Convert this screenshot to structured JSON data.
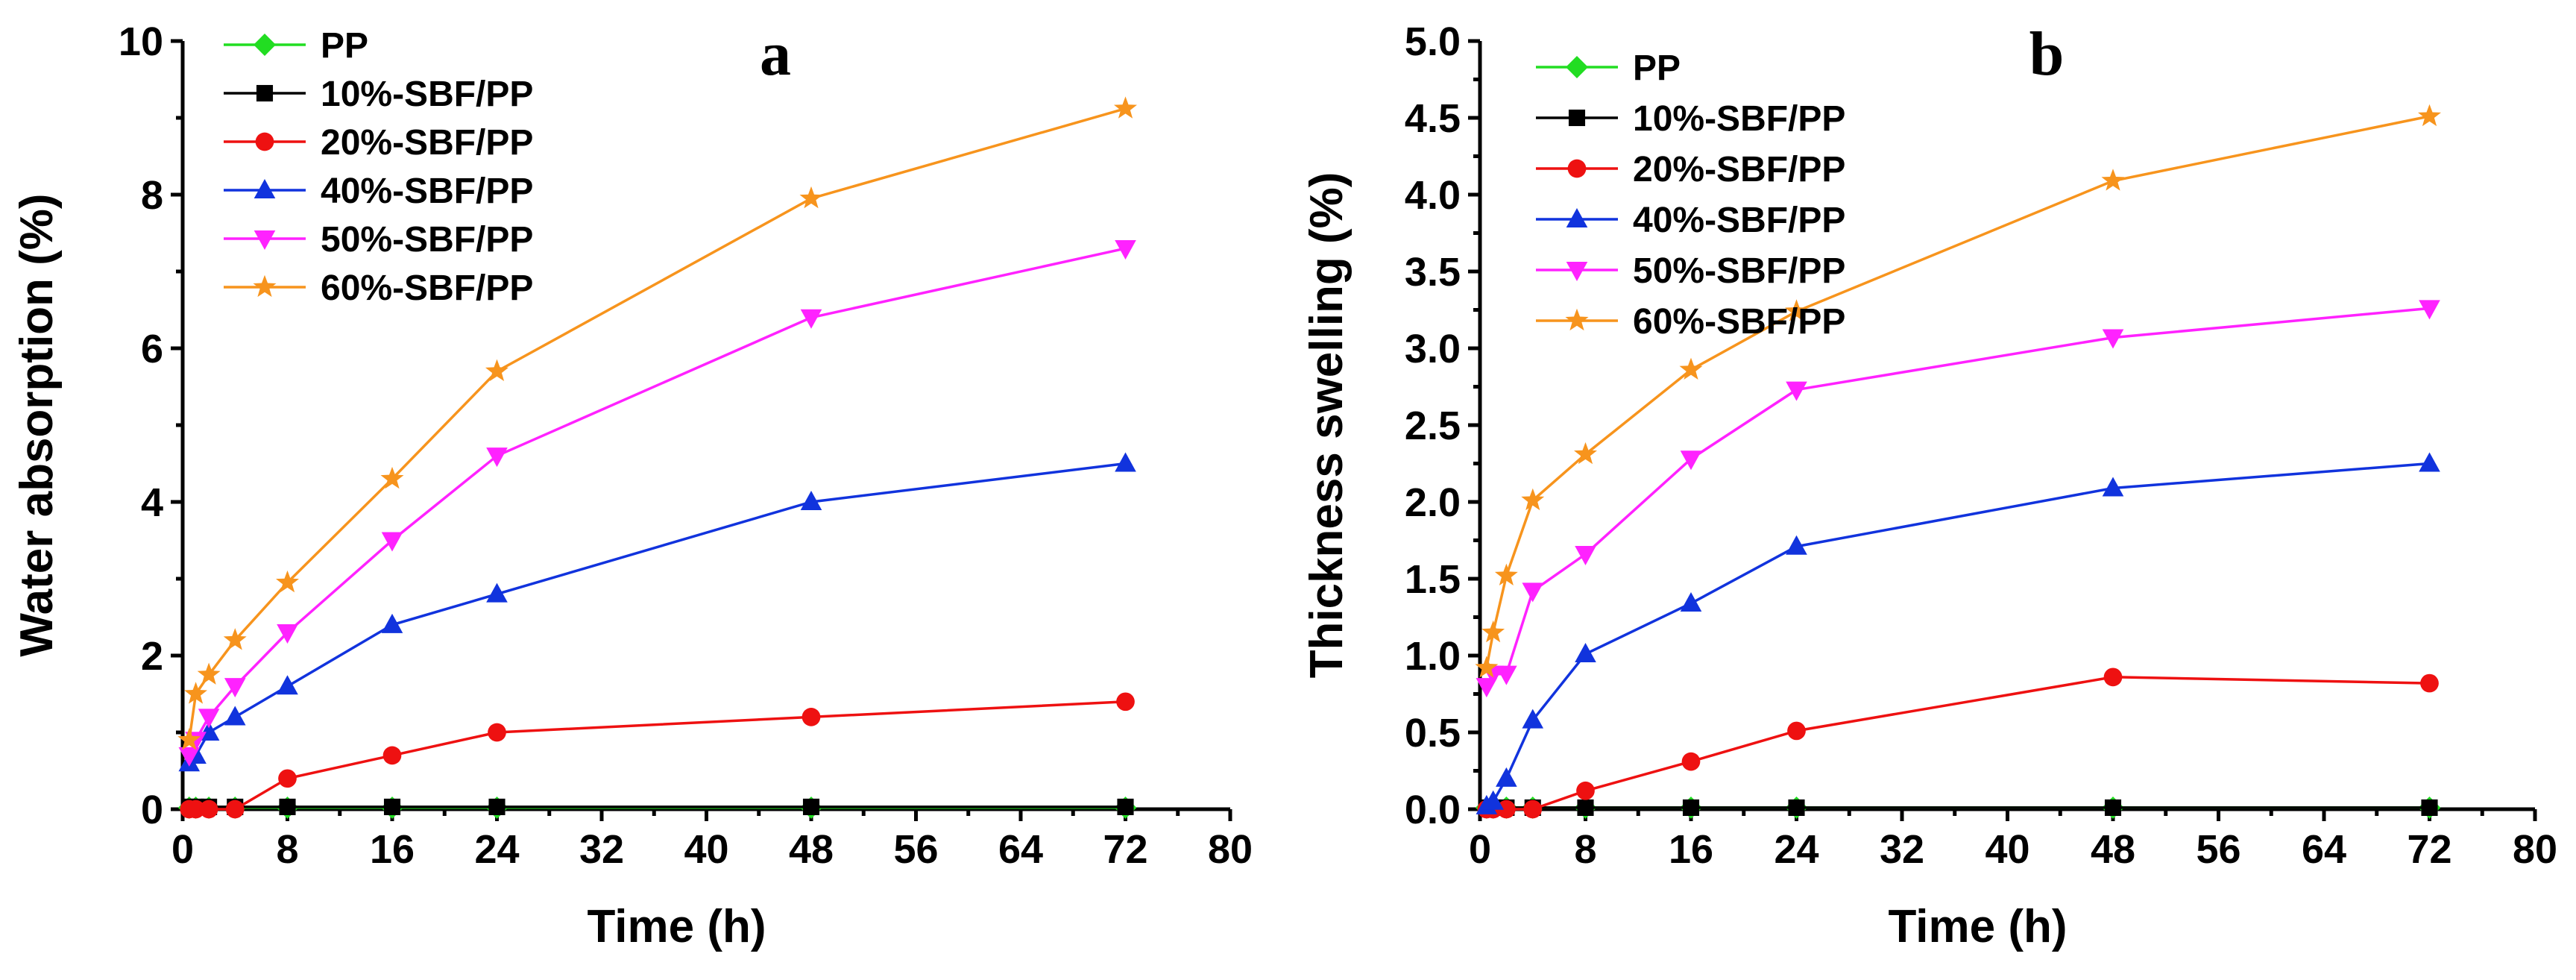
{
  "colors": {
    "PP": "#22dd22",
    "10%-SBF/PP": "#000000",
    "20%-SBF/PP": "#ee1111",
    "40%-SBF/PP": "#1133dd",
    "50%-SBF/PP": "#ff22ff",
    "60%-SBF/PP": "#f7941d"
  },
  "markers": {
    "PP": "diamond",
    "10%-SBF/PP": "square",
    "20%-SBF/PP": "circle",
    "40%-SBF/PP": "triangle-up",
    "50%-SBF/PP": "triangle-down",
    "60%-SBF/PP": "star"
  },
  "chart_data": [
    {
      "type": "line",
      "panel_label": "a",
      "xlabel": "Time (h)",
      "ylabel": "Water absorption (%)",
      "xlim": [
        0,
        80
      ],
      "ylim": [
        0,
        10
      ],
      "xticks": [
        0,
        8,
        16,
        24,
        32,
        40,
        48,
        56,
        64,
        72,
        80
      ],
      "yticks": [
        0,
        2,
        4,
        6,
        8,
        10
      ],
      "legend": "top-left",
      "x": [
        0.5,
        1,
        2,
        4,
        8,
        16,
        24,
        48,
        72
      ],
      "series": [
        {
          "name": "PP",
          "values": [
            0.02,
            0.02,
            0.02,
            0.02,
            0.02,
            0.02,
            0.02,
            0.02,
            0.02
          ]
        },
        {
          "name": "10%-SBF/PP",
          "values": [
            0.03,
            0.03,
            0.03,
            0.03,
            0.03,
            0.03,
            0.03,
            0.03,
            0.03
          ]
        },
        {
          "name": "20%-SBF/PP",
          "values": [
            0.0,
            0.0,
            0.0,
            0.0,
            0.4,
            0.7,
            1.0,
            1.2,
            1.4
          ]
        },
        {
          "name": "40%-SBF/PP",
          "values": [
            0.6,
            0.7,
            1.0,
            1.2,
            1.6,
            2.4,
            2.8,
            4.0,
            4.5
          ]
        },
        {
          "name": "50%-SBF/PP",
          "values": [
            0.7,
            0.9,
            1.2,
            1.6,
            2.3,
            3.5,
            4.6,
            6.4,
            7.3
          ]
        },
        {
          "name": "60%-SBF/PP",
          "values": [
            0.9,
            1.5,
            1.75,
            2.2,
            2.95,
            4.3,
            5.7,
            7.95,
            9.12
          ]
        }
      ]
    },
    {
      "type": "line",
      "panel_label": "b",
      "xlabel": "Time (h)",
      "ylabel": "Thickness swelling (%)",
      "xlim": [
        0,
        80
      ],
      "ylim": [
        0,
        5
      ],
      "xticks": [
        0,
        8,
        16,
        24,
        32,
        40,
        48,
        56,
        64,
        72,
        80
      ],
      "yticks": [
        0,
        0.5,
        1.0,
        1.5,
        2.0,
        2.5,
        3.0,
        3.5,
        4.0,
        4.5,
        5.0
      ],
      "ytick_labels": [
        "0.0",
        "0.5",
        "1.0",
        "1.5",
        "2.0",
        "2.5",
        "3.0",
        "3.5",
        "4.0",
        "4.5",
        "5.0"
      ],
      "legend": "top-left",
      "x": [
        0.5,
        1,
        2,
        4,
        8,
        16,
        24,
        48,
        72
      ],
      "series": [
        {
          "name": "PP",
          "values": [
            0.01,
            0.01,
            0.01,
            0.01,
            0.01,
            0.01,
            0.01,
            0.01,
            0.01
          ]
        },
        {
          "name": "10%-SBF/PP",
          "values": [
            0.01,
            0.01,
            0.01,
            0.01,
            0.01,
            0.01,
            0.01,
            0.01,
            0.01
          ]
        },
        {
          "name": "20%-SBF/PP",
          "values": [
            0.0,
            0.0,
            0.0,
            0.0,
            0.12,
            0.31,
            0.51,
            0.86,
            0.82
          ]
        },
        {
          "name": "40%-SBF/PP",
          "values": [
            0.02,
            0.05,
            0.2,
            0.58,
            1.01,
            1.34,
            1.71,
            2.09,
            2.25
          ]
        },
        {
          "name": "50%-SBF/PP",
          "values": [
            0.8,
            0.88,
            0.88,
            1.42,
            1.66,
            2.28,
            2.73,
            3.07,
            3.26
          ]
        },
        {
          "name": "60%-SBF/PP",
          "values": [
            0.92,
            1.15,
            1.52,
            2.01,
            2.31,
            2.86,
            3.24,
            4.09,
            4.51
          ]
        }
      ]
    }
  ]
}
